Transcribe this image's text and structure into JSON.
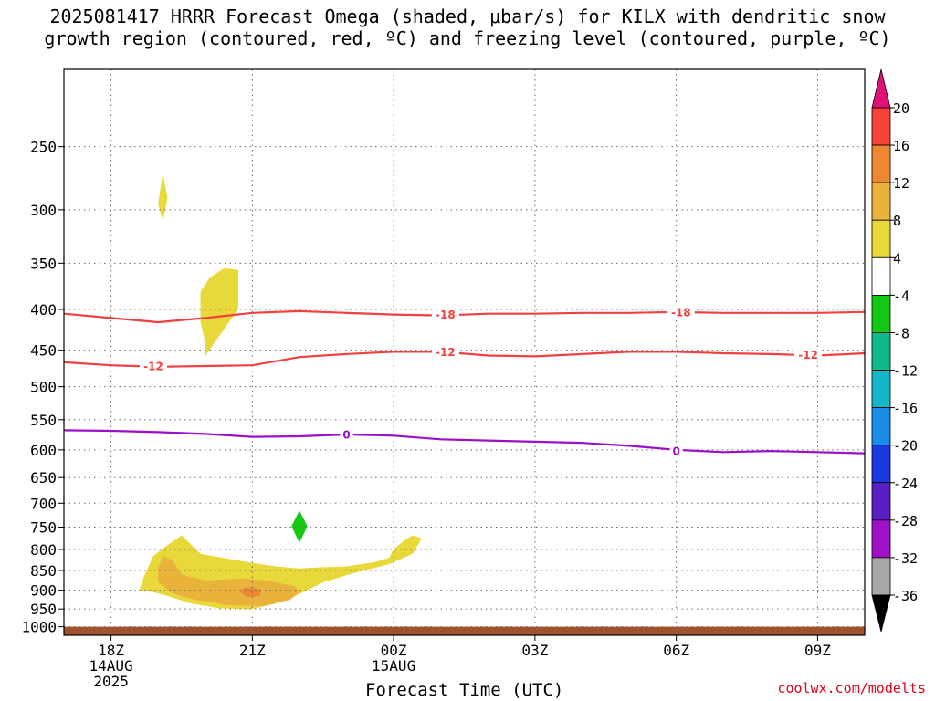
{
  "title": {
    "line1": "2025081417 HRRR Forecast Omega (shaded, μbar/s) for KILX with dendritic snow",
    "line2": "growth region (contoured, red, ºC) and freezing level (contoured, purple, ºC)"
  },
  "credit": "coolwx.com/modelts",
  "chart_data": {
    "type": "time-height cross section",
    "xlabel": "Forecast Time (UTC)",
    "x_ticks": [
      {
        "hour": 18,
        "lines": [
          "18Z",
          "14AUG",
          "2025"
        ]
      },
      {
        "hour": 21,
        "lines": [
          "21Z"
        ]
      },
      {
        "hour": 24,
        "lines": [
          "00Z",
          "15AUG"
        ]
      },
      {
        "hour": 27,
        "lines": [
          "03Z"
        ]
      },
      {
        "hour": 30,
        "lines": [
          "06Z"
        ]
      },
      {
        "hour": 33,
        "lines": [
          "09Z"
        ]
      }
    ],
    "x_range_hours": [
      17.0,
      34.0
    ],
    "y_axis": "pressure (mb)",
    "y_ticks": [
      250,
      300,
      350,
      400,
      450,
      500,
      550,
      600,
      650,
      700,
      750,
      800,
      850,
      900,
      950,
      1000
    ],
    "y_range_mb": [
      200,
      1025
    ],
    "grid": true,
    "colorbar": {
      "ticks": [
        20,
        16,
        12,
        8,
        4,
        -4,
        -8,
        -12,
        -16,
        -20,
        -24,
        -28,
        -32,
        -36
      ],
      "bands": [
        {
          "from": 16,
          "to": 20,
          "color": "#f5433a"
        },
        {
          "from": 12,
          "to": 16,
          "color": "#ee8732"
        },
        {
          "from": 8,
          "to": 12,
          "color": "#e9b23a"
        },
        {
          "from": 4,
          "to": 8,
          "color": "#e8d83a"
        },
        {
          "from": -4,
          "to": 4,
          "color": "#ffffff"
        },
        {
          "from": -8,
          "to": -4,
          "color": "#13c916"
        },
        {
          "from": -12,
          "to": -8,
          "color": "#10b98a"
        },
        {
          "from": -16,
          "to": -12,
          "color": "#14b7c8"
        },
        {
          "from": -20,
          "to": -16,
          "color": "#1a8de8"
        },
        {
          "from": -24,
          "to": -20,
          "color": "#1a3ae0"
        },
        {
          "from": -28,
          "to": -24,
          "color": "#5a1fc4"
        },
        {
          "from": -32,
          "to": -28,
          "color": "#a010c8"
        },
        {
          "from": -36,
          "to": -32,
          "color": "#a8a8a8"
        }
      ],
      "top_arrow_color": "#e0127a",
      "bottom_arrow_color": "#000000"
    },
    "contours": [
      {
        "label": "-18",
        "color": "#f04040",
        "points": [
          [
            17.0,
            405
          ],
          [
            18.0,
            410
          ],
          [
            19.0,
            415
          ],
          [
            20.0,
            410
          ],
          [
            21.0,
            404
          ],
          [
            22.0,
            402
          ],
          [
            23.0,
            404
          ],
          [
            24.0,
            406
          ],
          [
            25.0,
            407
          ],
          [
            26.0,
            405
          ],
          [
            27.0,
            405
          ],
          [
            28.0,
            404
          ],
          [
            29.0,
            404
          ],
          [
            30.0,
            403
          ],
          [
            31.0,
            404
          ],
          [
            32.0,
            404
          ],
          [
            33.0,
            404
          ],
          [
            34.0,
            403
          ]
        ],
        "label_at": [
          [
            25.1,
            406
          ],
          [
            30.1,
            403
          ]
        ]
      },
      {
        "label": "-12",
        "color": "#f04040",
        "points": [
          [
            17.0,
            466
          ],
          [
            18.0,
            470
          ],
          [
            19.0,
            472
          ],
          [
            20.0,
            471
          ],
          [
            21.0,
            470
          ],
          [
            22.0,
            459
          ],
          [
            23.0,
            455
          ],
          [
            24.0,
            452
          ],
          [
            25.0,
            452
          ],
          [
            26.0,
            457
          ],
          [
            27.0,
            458
          ],
          [
            28.0,
            455
          ],
          [
            29.0,
            452
          ],
          [
            30.0,
            452
          ],
          [
            31.0,
            454
          ],
          [
            32.0,
            455
          ],
          [
            33.0,
            457
          ],
          [
            34.0,
            454
          ]
        ],
        "label_at": [
          [
            18.9,
            471
          ],
          [
            25.1,
            452
          ],
          [
            32.8,
            456
          ]
        ]
      },
      {
        "label": "0",
        "color": "#9a10c8",
        "points": [
          [
            17.0,
            567
          ],
          [
            18.0,
            568
          ],
          [
            19.0,
            570
          ],
          [
            20.0,
            573
          ],
          [
            21.0,
            578
          ],
          [
            22.0,
            577
          ],
          [
            23.0,
            574
          ],
          [
            24.0,
            576
          ],
          [
            25.0,
            582
          ],
          [
            26.0,
            584
          ],
          [
            27.0,
            586
          ],
          [
            28.0,
            588
          ],
          [
            29.0,
            593
          ],
          [
            30.0,
            600
          ],
          [
            31.0,
            604
          ],
          [
            32.0,
            602
          ],
          [
            33.0,
            604
          ],
          [
            34.0,
            606
          ]
        ],
        "label_at": [
          [
            23.0,
            574
          ],
          [
            30.0,
            602
          ]
        ]
      }
    ],
    "omega_regions": [
      {
        "value_range": [
          4,
          8
        ],
        "color": "#e8d83a",
        "points": [
          [
            19.1,
            270
          ],
          [
            19.0,
            295
          ],
          [
            19.1,
            310
          ],
          [
            19.2,
            290
          ]
        ]
      },
      {
        "value_range": [
          4,
          8
        ],
        "color": "#e8d83a",
        "points": [
          [
            19.9,
            380
          ],
          [
            19.9,
            415
          ],
          [
            20.0,
            440
          ],
          [
            20.0,
            458
          ],
          [
            20.2,
            440
          ],
          [
            20.7,
            400
          ],
          [
            20.7,
            357
          ],
          [
            20.4,
            355
          ],
          [
            20.1,
            365
          ]
        ]
      },
      {
        "value_range": [
          4,
          8
        ],
        "color": "#e8d83a",
        "points": [
          [
            18.6,
            900
          ],
          [
            18.7,
            865
          ],
          [
            18.9,
            815
          ],
          [
            19.2,
            790
          ],
          [
            19.5,
            768
          ],
          [
            19.9,
            810
          ],
          [
            20.5,
            822
          ],
          [
            21.0,
            832
          ],
          [
            21.5,
            840
          ],
          [
            22.0,
            845
          ],
          [
            22.5,
            842
          ],
          [
            23.0,
            840
          ],
          [
            23.6,
            830
          ],
          [
            23.9,
            820
          ],
          [
            24.0,
            800
          ],
          [
            24.2,
            782
          ],
          [
            24.4,
            768
          ],
          [
            24.6,
            775
          ],
          [
            24.4,
            810
          ],
          [
            23.9,
            835
          ],
          [
            23.2,
            855
          ],
          [
            22.5,
            880
          ],
          [
            22.0,
            910
          ],
          [
            21.5,
            935
          ],
          [
            21.0,
            950
          ],
          [
            20.3,
            948
          ],
          [
            19.7,
            935
          ],
          [
            19.2,
            915
          ],
          [
            18.9,
            905
          ]
        ]
      },
      {
        "value_range": [
          8,
          12
        ],
        "color": "#e9b23a",
        "points": [
          [
            19.0,
            880
          ],
          [
            19.0,
            845
          ],
          [
            19.1,
            815
          ],
          [
            19.3,
            825
          ],
          [
            19.5,
            860
          ],
          [
            20.0,
            875
          ],
          [
            20.8,
            870
          ],
          [
            21.3,
            875
          ],
          [
            21.9,
            890
          ],
          [
            22.0,
            905
          ],
          [
            21.8,
            925
          ],
          [
            21.2,
            942
          ],
          [
            20.5,
            940
          ],
          [
            19.8,
            925
          ],
          [
            19.3,
            908
          ]
        ]
      },
      {
        "value_range": [
          12,
          16
        ],
        "color": "#ee8732",
        "points": [
          [
            20.75,
            905
          ],
          [
            20.8,
            895
          ],
          [
            21.0,
            892
          ],
          [
            21.2,
            900
          ],
          [
            21.15,
            915
          ],
          [
            20.9,
            918
          ]
        ]
      },
      {
        "value_range": [
          -8,
          -4
        ],
        "color": "#13c916",
        "points": [
          [
            22.0,
            715
          ],
          [
            21.83,
            748
          ],
          [
            22.0,
            785
          ],
          [
            22.17,
            748
          ]
        ]
      }
    ],
    "ground": {
      "from_mb": 1000,
      "to_mb": 1025,
      "color": "#a0522d"
    }
  }
}
